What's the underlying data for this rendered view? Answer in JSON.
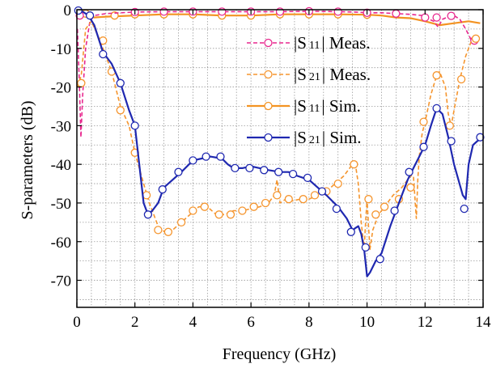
{
  "chart_data": {
    "type": "line",
    "xlabel": "Frequency (GHz)",
    "ylabel": "S-parameters (dB)",
    "xlim": [
      0,
      14
    ],
    "ylim": [
      -77,
      0
    ],
    "x_ticks": [
      "0",
      "2",
      "4",
      "6",
      "8",
      "10",
      "12",
      "14"
    ],
    "y_ticks": [
      "0",
      "-10",
      "-20",
      "-30",
      "-40",
      "-50",
      "-60",
      "-70"
    ],
    "grid": true,
    "legend_position": "top-right",
    "series": [
      {
        "name": "|S11| Meas.",
        "legend_bars": "|S",
        "legend_sub": "11",
        "legend_rest": "| Meas.",
        "color": "#e8278e",
        "line_style": "dashed",
        "marker": "circle",
        "x": [
          0.02,
          0.08,
          0.14,
          0.2,
          0.3,
          0.45,
          0.6,
          1.0,
          1.5,
          2.0,
          3.0,
          4.0,
          5.0,
          6.0,
          7.0,
          8.0,
          9.0,
          9.6,
          10.0,
          10.5,
          11.0,
          11.5,
          11.9,
          12.0,
          12.3,
          12.45,
          12.6,
          12.8,
          13.0,
          13.2,
          13.4,
          13.6,
          13.8
        ],
        "y": [
          -5,
          -18,
          -33,
          -22,
          -10,
          -3,
          -1.5,
          -1.0,
          -0.8,
          -0.6,
          -0.5,
          -0.5,
          -0.5,
          -0.5,
          -0.5,
          -0.4,
          -0.5,
          -0.6,
          -0.8,
          -0.8,
          -1.0,
          -1.2,
          -1.5,
          -2,
          -3,
          -4.5,
          -2.5,
          -1.8,
          -1.5,
          -2.5,
          -5,
          -8,
          -8
        ],
        "markers_x": [
          0.1,
          2.0,
          3.0,
          4.0,
          5.0,
          6.0,
          7.0,
          8.0,
          9.0,
          10.0,
          11.0,
          12.0,
          12.4,
          12.9,
          13.7
        ],
        "markers_y": [
          -1.5,
          -0.6,
          -0.5,
          -0.5,
          -0.5,
          -0.5,
          -0.5,
          -0.4,
          -0.5,
          -0.8,
          -1.0,
          -2.0,
          -2.0,
          -1.6,
          -8.0
        ]
      },
      {
        "name": "|S21| Meas.",
        "legend_bars": "|S",
        "legend_sub": "21",
        "legend_rest": "| Meas.",
        "color": "#f5952e",
        "line_style": "dashed",
        "marker": "circle",
        "x": [
          0.02,
          0.15,
          0.3,
          0.5,
          0.8,
          1.0,
          1.2,
          1.5,
          1.8,
          2.0,
          2.3,
          2.5,
          2.8,
          3.1,
          3.3,
          3.6,
          3.9,
          4.2,
          4.5,
          4.8,
          5.1,
          5.4,
          5.7,
          6.0,
          6.3,
          6.6,
          6.8,
          6.9,
          7.0,
          7.2,
          7.4,
          7.7,
          8.0,
          8.3,
          8.6,
          8.9,
          9.2,
          9.5,
          9.6,
          9.7,
          9.8,
          9.9,
          9.95,
          10.0,
          10.05,
          10.1,
          10.2,
          10.4,
          10.6,
          10.9,
          11.2,
          11.5,
          11.6,
          11.7,
          11.75,
          11.8,
          11.9,
          12.0,
          12.2,
          12.4,
          12.5,
          12.7,
          12.8,
          12.9,
          13.0,
          13.2,
          13.4,
          13.6,
          13.8
        ],
        "y": [
          -20,
          -17,
          -5,
          -3,
          -8,
          -12,
          -16,
          -25,
          -30,
          -37,
          -45,
          -50,
          -56,
          -58,
          -57,
          -55,
          -53,
          -51,
          -51,
          -53,
          -53,
          -52,
          -52,
          -51.5,
          -51,
          -50,
          -48,
          -44,
          -50,
          -49,
          -49.5,
          -49,
          -49,
          -48,
          -47,
          -45,
          -43,
          -40,
          -40,
          -45,
          -55,
          -62,
          -55,
          -49,
          -56,
          -62,
          -57,
          -53,
          -51,
          -48,
          -46,
          -43,
          -43,
          -54,
          -44,
          -38,
          -32,
          -29,
          -22,
          -17,
          -16,
          -20,
          -27,
          -30,
          -26,
          -18,
          -12,
          -8,
          -8
        ],
        "markers_x": [
          0.15,
          0.9,
          1.2,
          1.5,
          2.0,
          2.4,
          2.8,
          3.15,
          3.6,
          4.0,
          4.4,
          4.9,
          5.3,
          5.7,
          6.1,
          6.5,
          6.9,
          7.3,
          7.8,
          8.2,
          8.6,
          9.0,
          9.55,
          10.05,
          10.3,
          10.6,
          11.1,
          11.5,
          11.95,
          12.4,
          12.85,
          13.25,
          13.75
        ],
        "markers_y": [
          -19,
          -8,
          -16,
          -26,
          -37,
          -48,
          -57,
          -57.5,
          -55,
          -52,
          -51,
          -53,
          -53,
          -52,
          -51,
          -50,
          -48,
          -49,
          -49,
          -48,
          -47,
          -45,
          -40,
          -49,
          -53,
          -51,
          -49,
          -46,
          -29,
          -17,
          -30,
          -18,
          -7.5
        ]
      },
      {
        "name": "|S11| Sim.",
        "legend_bars": "|S",
        "legend_sub": "11",
        "legend_rest": "| Sim.",
        "color": "#f39322",
        "line_style": "solid",
        "marker": "circle",
        "x": [
          0,
          0.3,
          0.6,
          1.0,
          2.0,
          3.0,
          4.0,
          5.0,
          6.0,
          7.0,
          8.0,
          9.0,
          10.0,
          10.5,
          11.0,
          11.5,
          12.0,
          12.5,
          13.0,
          13.5,
          13.9
        ],
        "y": [
          -0.5,
          -1.0,
          -2.0,
          -1.8,
          -1.5,
          -1.2,
          -1.2,
          -1.5,
          -1.5,
          -1.2,
          -1.2,
          -1.2,
          -1.3,
          -1.5,
          -2.0,
          -2.2,
          -3.0,
          -4.0,
          -3.5,
          -3.0,
          -3.5
        ],
        "markers_x": [
          0.3,
          1.3,
          2.0,
          3.0,
          4.0,
          5.0,
          6.0,
          7.0,
          8.0,
          9.0,
          10.0
        ],
        "markers_y": [
          -1.0,
          -1.5,
          -1.2,
          -1.2,
          -1.2,
          -1.5,
          -1.5,
          -1.2,
          -1.2,
          -1.2,
          -1.3
        ]
      },
      {
        "name": "|S21| Sim.",
        "legend_bars": "|S",
        "legend_sub": "21",
        "legend_rest": "| Sim.",
        "color": "#1f28b0",
        "line_style": "solid",
        "marker": "circle",
        "x": [
          0,
          0.2,
          0.4,
          0.6,
          0.9,
          1.2,
          1.5,
          1.8,
          2.0,
          2.15,
          2.3,
          2.45,
          2.6,
          2.8,
          3.0,
          3.3,
          3.6,
          4.0,
          4.3,
          4.6,
          5.0,
          5.2,
          5.4,
          5.7,
          6.0,
          6.3,
          6.6,
          7.0,
          7.3,
          7.6,
          8.0,
          8.3,
          8.6,
          9.0,
          9.3,
          9.5,
          9.7,
          9.8,
          9.9,
          10.0,
          10.1,
          10.3,
          10.5,
          10.8,
          11.0,
          11.2,
          11.4,
          11.6,
          11.8,
          12.0,
          12.2,
          12.4,
          12.6,
          12.8,
          13.0,
          13.15,
          13.3,
          13.4,
          13.5,
          13.65,
          13.8,
          14.0
        ],
        "y": [
          0,
          -0.5,
          -1.5,
          -4,
          -11,
          -14,
          -19,
          -26,
          -30,
          -40,
          -50,
          -53,
          -52,
          -50,
          -46,
          -44,
          -42,
          -39,
          -38.5,
          -38,
          -38.5,
          -40,
          -41,
          -41,
          -40.5,
          -41,
          -41.5,
          -42,
          -42,
          -43,
          -44,
          -46,
          -48,
          -51,
          -54,
          -57,
          -56,
          -58,
          -62,
          -69,
          -68,
          -65,
          -63,
          -56,
          -52,
          -48,
          -44,
          -41,
          -38,
          -35,
          -30,
          -25.5,
          -27,
          -33,
          -40,
          -44,
          -48,
          -49,
          -40,
          -35,
          -34,
          -33
        ],
        "markers_x": [
          0.05,
          0.45,
          0.9,
          1.5,
          2.0,
          2.45,
          2.95,
          3.5,
          4.0,
          4.45,
          4.95,
          5.45,
          5.95,
          6.45,
          6.95,
          7.45,
          7.95,
          8.45,
          8.95,
          9.45,
          9.95,
          10.45,
          10.95,
          11.45,
          11.95,
          12.4,
          12.9,
          13.35,
          13.9
        ],
        "markers_y": [
          -0.2,
          -1.5,
          -11.5,
          -19,
          -30,
          -53,
          -46.5,
          -42,
          -39,
          -38,
          -38,
          -41,
          -41,
          -41.5,
          -42,
          -42.5,
          -43.5,
          -47,
          -51.5,
          -57.5,
          -61.5,
          -64.5,
          -52,
          -42,
          -35.5,
          -25.5,
          -34,
          -51.5,
          -33
        ]
      }
    ]
  }
}
